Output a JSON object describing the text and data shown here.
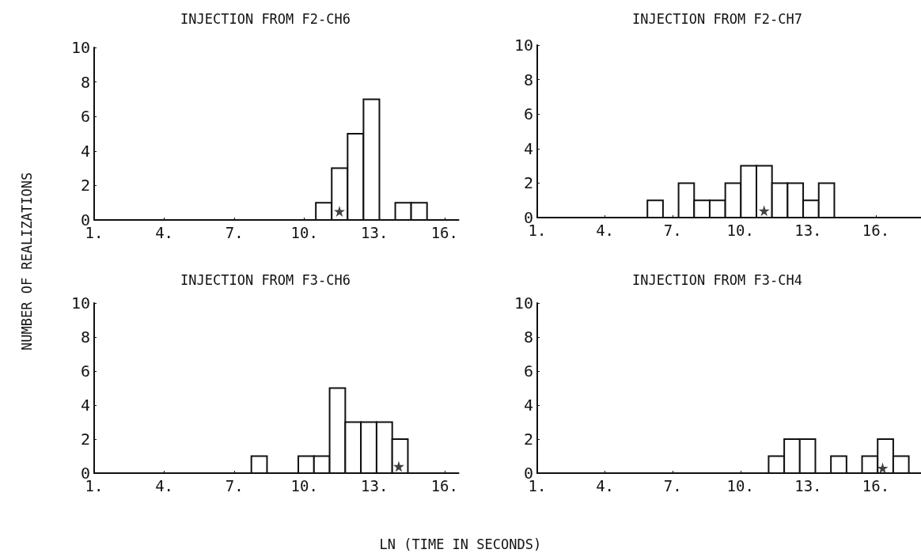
{
  "chart_data": [
    {
      "type": "histogram",
      "title": "INJECTION FROM F2-CH6",
      "ylabel": "NUMBER OF REALIZATIONS",
      "series": [
        {
          "color": "#ffffff",
          "bins": [
            10.49,
            11.17,
            11.85,
            12.53,
            13.21,
            13.89,
            14.57,
            15.25
          ],
          "values": [
            1,
            3,
            5,
            7,
            0,
            1,
            1
          ]
        },
        {
          "type": "scatter",
          "color": "#111111",
          "marker": "star",
          "x": [
            11.5
          ],
          "values": [
            0.5
          ]
        }
      ],
      "xlim": [
        1,
        16.6
      ],
      "xticks": [
        {
          "value": 1,
          "label": "1."
        },
        {
          "value": 4,
          "label": "4."
        },
        {
          "value": 7,
          "label": "7."
        },
        {
          "value": 10,
          "label": "10."
        },
        {
          "value": 13,
          "label": "13."
        },
        {
          "value": 16,
          "label": "16."
        }
      ],
      "ylim": [
        0,
        10
      ],
      "yticks": [
        0,
        2,
        4,
        6,
        8,
        10
      ],
      "grid": false
    },
    {
      "type": "histogram",
      "title": "INJECTION FROM F2-CH7",
      "series": [
        {
          "color": "#ffffff",
          "bins": [
            5.88,
            6.57,
            7.26,
            7.95,
            8.64,
            9.33,
            10.02,
            10.71,
            11.4,
            12.09,
            12.78,
            13.47,
            14.16
          ],
          "values": [
            1,
            0,
            2,
            1,
            1,
            2,
            3,
            3,
            2,
            2,
            1,
            2
          ]
        },
        {
          "type": "scatter",
          "color": "#111111",
          "marker": "star",
          "x": [
            11.05
          ],
          "values": [
            0.4
          ]
        }
      ],
      "xlim": [
        1,
        18
      ],
      "xticks": [
        {
          "value": 1,
          "label": "1."
        },
        {
          "value": 4,
          "label": "4."
        },
        {
          "value": 7,
          "label": "7."
        },
        {
          "value": 10,
          "label": "10."
        },
        {
          "value": 13,
          "label": "13."
        },
        {
          "value": 16,
          "label": "16."
        }
      ],
      "ylim": [
        0,
        10
      ],
      "yticks": [
        0,
        2,
        4,
        6,
        8,
        10
      ],
      "grid": false
    },
    {
      "type": "histogram",
      "title": "INJECTION FROM F3-CH6",
      "xlabel": "LN (TIME IN SECONDS)",
      "series": [
        {
          "color": "#ffffff",
          "bins": [
            7.73,
            8.4,
            9.07,
            9.74,
            10.41,
            11.08,
            11.75,
            12.42,
            13.09,
            13.76,
            14.43
          ],
          "values": [
            1,
            0,
            0,
            1,
            1,
            5,
            3,
            3,
            3,
            2
          ]
        },
        {
          "type": "scatter",
          "color": "#111111",
          "marker": "star",
          "x": [
            14.04
          ],
          "values": [
            0.4
          ]
        }
      ],
      "xlim": [
        1,
        16.6
      ],
      "xticks": [
        {
          "value": 1,
          "label": "1."
        },
        {
          "value": 4,
          "label": "4."
        },
        {
          "value": 7,
          "label": "7."
        },
        {
          "value": 10,
          "label": "10."
        },
        {
          "value": 13,
          "label": "13."
        },
        {
          "value": 16,
          "label": "16."
        }
      ],
      "ylim": [
        0,
        10
      ],
      "yticks": [
        0,
        2,
        4,
        6,
        8,
        10
      ],
      "grid": false
    },
    {
      "type": "histogram",
      "title": "INJECTION FROM F3-CH4",
      "series": [
        {
          "color": "#ffffff",
          "bins": [
            11.25,
            11.94,
            12.63,
            13.32,
            14.01,
            14.7,
            15.39,
            16.08,
            16.77,
            17.46
          ],
          "values": [
            1,
            2,
            2,
            0,
            1,
            0,
            1,
            2,
            1
          ]
        },
        {
          "type": "scatter",
          "color": "#111111",
          "marker": "star",
          "x": [
            16.3
          ],
          "values": [
            0.3
          ]
        }
      ],
      "xlim": [
        1,
        18
      ],
      "xticks": [
        {
          "value": 1,
          "label": "1."
        },
        {
          "value": 4,
          "label": "4."
        },
        {
          "value": 7,
          "label": "7."
        },
        {
          "value": 10,
          "label": "10."
        },
        {
          "value": 13,
          "label": "13."
        },
        {
          "value": 16,
          "label": "16."
        }
      ],
      "ylim": [
        0,
        10
      ],
      "yticks": [
        0,
        2,
        4,
        6,
        8,
        10
      ],
      "grid": false
    }
  ]
}
